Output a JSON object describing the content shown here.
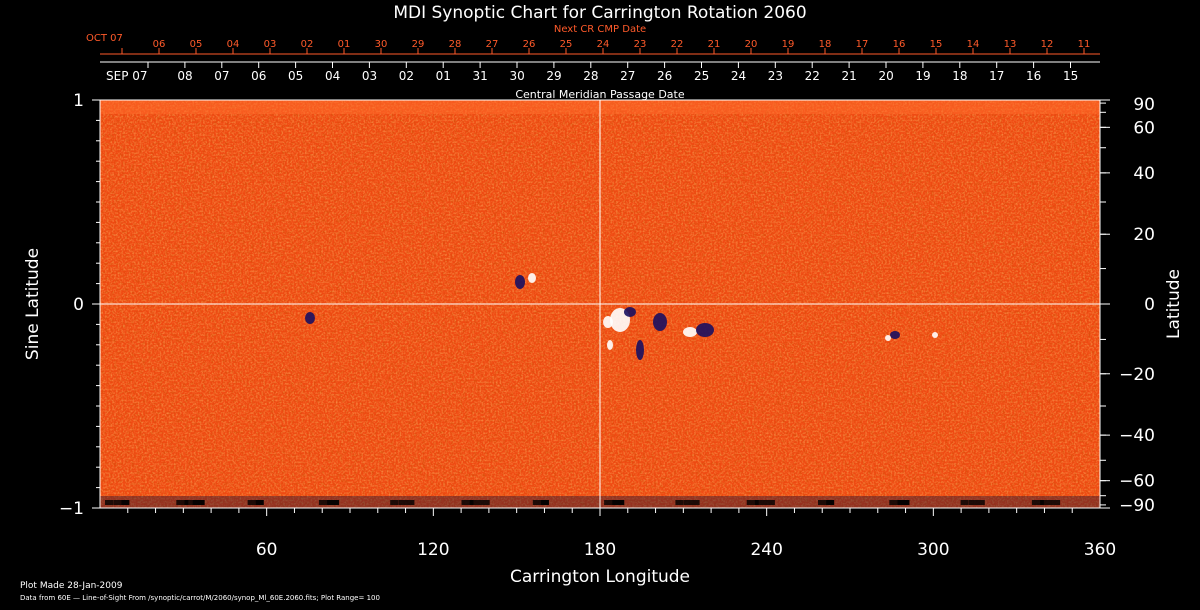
{
  "chart_data": {
    "type": "heatmap",
    "title": "MDI Synoptic Chart for Carrington Rotation 2060",
    "xlabel": "Carrington Longitude",
    "ylabel_left": "Sine Latitude",
    "ylabel_right": "Latitude",
    "xlim": [
      0,
      360
    ],
    "ylim": [
      -1,
      1
    ],
    "x_ticks": [
      60,
      120,
      180,
      240,
      300,
      360
    ],
    "y_left_ticks": [
      {
        "value": 1,
        "label": "1"
      },
      {
        "value": 0,
        "label": "0"
      },
      {
        "value": -1,
        "label": "−1"
      }
    ],
    "y_right_ticks": [
      {
        "deg": 90,
        "label": "90"
      },
      {
        "deg": 60,
        "label": "60"
      },
      {
        "deg": 40,
        "label": "40"
      },
      {
        "deg": 20,
        "label": "20"
      },
      {
        "deg": 0,
        "label": "0"
      },
      {
        "deg": -20,
        "label": "−20"
      },
      {
        "deg": -40,
        "label": "−40"
      },
      {
        "deg": -60,
        "label": "−60"
      },
      {
        "deg": -90,
        "label": "−90"
      }
    ],
    "top_axis_label": "Central Meridian Passage Date",
    "top_axis_start": "SEP 07",
    "top_axis_days": [
      "08",
      "07",
      "06",
      "05",
      "04",
      "03",
      "02",
      "01",
      "31",
      "30",
      "29",
      "28",
      "27",
      "26",
      "25",
      "24",
      "23",
      "22",
      "21",
      "20",
      "19",
      "18",
      "17",
      "16",
      "15"
    ],
    "next_axis_label": "Next CR CMP Date",
    "next_axis_start": "OCT 07",
    "next_axis_days": [
      "06",
      "05",
      "04",
      "03",
      "02",
      "01",
      "30",
      "29",
      "28",
      "27",
      "26",
      "25",
      "24",
      "23",
      "22",
      "21",
      "20",
      "19",
      "18",
      "17",
      "16",
      "15",
      "14",
      "13",
      "12",
      "11"
    ],
    "crosshair": {
      "longitude": 180,
      "sine_latitude": 0
    },
    "colors": {
      "background_field": "#f04a10",
      "positive": "#ffffff",
      "negative": "#1a1060",
      "axis_primary": "#ffffff",
      "axis_secondary": "#ff5a2a"
    }
  },
  "footer": {
    "plot_made": "Plot Made 28-Jan-2009",
    "data_from": "Data from 60E — Line-of-Sight From /synoptic/carrot/M/2060/synop_Ml_60E.2060.fits; Plot Range=  100"
  }
}
